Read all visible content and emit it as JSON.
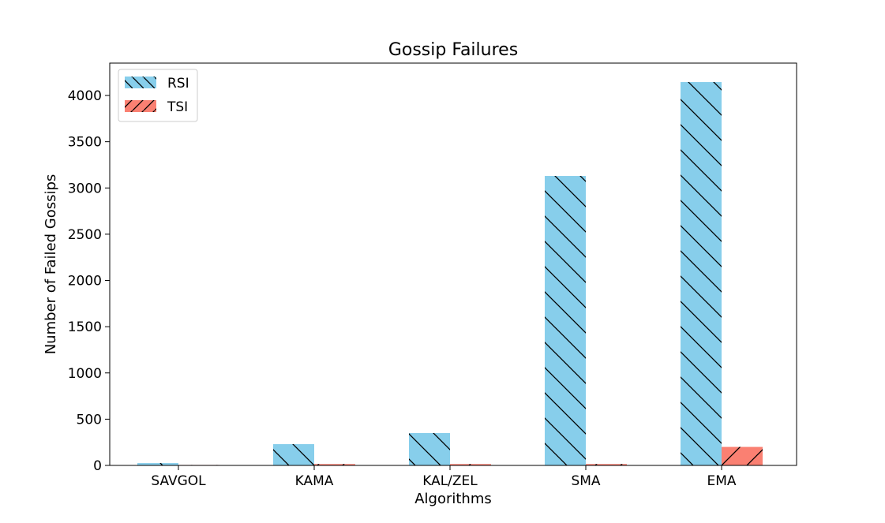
{
  "chart_data": {
    "type": "bar",
    "title": "Gossip Failures",
    "xlabel": "Algorithms",
    "ylabel": "Number of Failed Gossips",
    "categories": [
      "SAVGOL",
      "KAMA",
      "KAL/ZEL",
      "SMA",
      "EMA"
    ],
    "series": [
      {
        "name": "RSI",
        "values": [
          25,
          230,
          350,
          3130,
          4145
        ],
        "color": "#87ceeb",
        "hatch": "backslash"
      },
      {
        "name": "TSI",
        "values": [
          5,
          15,
          15,
          15,
          200
        ],
        "color": "#fa8072",
        "hatch": "slash"
      }
    ],
    "ylim": [
      0,
      4350
    ],
    "yticks": [
      0,
      500,
      1000,
      1500,
      2000,
      2500,
      3000,
      3500,
      4000
    ],
    "grid": false,
    "legend": "top-left"
  }
}
